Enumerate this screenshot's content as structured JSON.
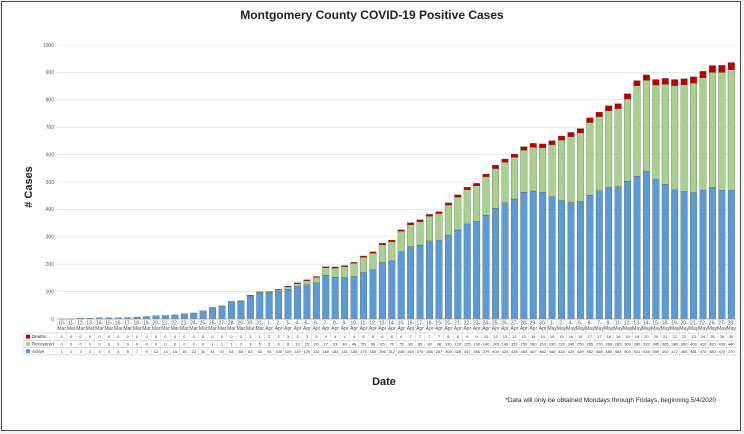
{
  "chart_data": {
    "type": "bar",
    "stacked": true,
    "title": "Montgomery County COVID-19 Positive Cases",
    "xlabel": "Date",
    "ylabel": "# Cases",
    "ylim": [
      0,
      1000
    ],
    "yticks": [
      0,
      100,
      200,
      300,
      400,
      500,
      600,
      700,
      800,
      900,
      1000
    ],
    "grid": true,
    "legend": "left of data table",
    "footnote": "*Data will only be obtained Mondays through Fridays, beginning 5/4/2020",
    "categories": [
      "10-Mar",
      "11-Mar",
      "12-Mar",
      "13-Mar",
      "14-Mar",
      "15-Mar",
      "16-Mar",
      "17-Mar",
      "18-Mar",
      "19-Mar",
      "20-Mar",
      "21-Mar",
      "22-Mar",
      "23-Mar",
      "24-Mar",
      "25-Mar",
      "26-Mar",
      "27-Mar",
      "28-Mar",
      "29-Mar",
      "30-Mar",
      "31-Mar",
      "1-Apr",
      "2-Apr",
      "3-Apr",
      "4-Apr",
      "5-Apr",
      "6-Apr",
      "7-Apr",
      "8-Apr",
      "9-Apr",
      "10-Apr",
      "11-Apr",
      "12-Apr",
      "13-Apr",
      "14-Apr",
      "15-Apr",
      "16-Apr",
      "17-Apr",
      "18-Apr",
      "19-Apr",
      "20-Apr",
      "21-Apr",
      "22-Apr",
      "23-Apr",
      "24-Apr",
      "25-Apr",
      "26-Apr",
      "27-Apr",
      "28-Apr",
      "29-Apr",
      "30-Apr",
      "1-May",
      "2-May",
      "4-May",
      "5-May",
      "6-May",
      "7-May",
      "8-May",
      "11-May",
      "12-May",
      "13-May",
      "14-May",
      "15-May",
      "18-May",
      "19-May",
      "20-May",
      "21-May",
      "22-May",
      "26-May",
      "27-May",
      "28-May"
    ],
    "series": [
      {
        "name": "Active",
        "color": "#5b9bd5",
        "values": [
          1,
          1,
          3,
          3,
          4,
          4,
          4,
          5,
          7,
          9,
          12,
          13,
          15,
          19,
          22,
          30,
          41,
          47,
          63,
          65,
          83,
          93,
          93,
          100,
          109,
          119,
          125,
          132,
          160,
          153,
          151,
          155,
          170,
          180,
          206,
          212,
          245,
          264,
          270,
          285,
          287,
          306,
          325,
          347,
          356,
          379,
          404,
          424,
          438,
          463,
          467,
          462,
          446,
          433,
          425,
          429,
          452,
          468,
          480,
          483,
          503,
          521,
          539,
          509,
          492,
          472,
          465,
          461,
          470,
          480,
          470,
          470
        ]
      },
      {
        "name": "Recovered",
        "color": "#a9d18e",
        "values": [
          0,
          0,
          0,
          0,
          0,
          0,
          0,
          0,
          0,
          0,
          0,
          0,
          0,
          0,
          0,
          0,
          1,
          1,
          1,
          2,
          3,
          5,
          5,
          6,
          8,
          10,
          15,
          20,
          27,
          33,
          40,
          48,
          55,
          60,
          65,
          70,
          75,
          80,
          85,
          90,
          98,
          110,
          120,
          125,
          130,
          140,
          145,
          148,
          152,
          153,
          160,
          163,
          190,
          220,
          240,
          250,
          265,
          270,
          280,
          285,
          300,
          330,
          332,
          345,
          365,
          380,
          390,
          400,
          410,
          420,
          430,
          440
        ]
      },
      {
        "name": "Deaths",
        "color": "#c00000",
        "values": [
          0,
          0,
          0,
          0,
          0,
          0,
          0,
          0,
          0,
          0,
          0,
          0,
          0,
          0,
          0,
          0,
          0,
          0,
          0,
          0,
          1,
          1,
          2,
          2,
          3,
          3,
          3,
          3,
          4,
          4,
          4,
          4,
          5,
          5,
          6,
          6,
          6,
          7,
          7,
          7,
          7,
          8,
          8,
          9,
          9,
          10,
          12,
          12,
          12,
          13,
          14,
          14,
          15,
          15,
          16,
          16,
          17,
          17,
          18,
          18,
          19,
          19,
          20,
          20,
          21,
          22,
          22,
          23,
          24,
          25,
          26,
          26
        ]
      }
    ]
  }
}
